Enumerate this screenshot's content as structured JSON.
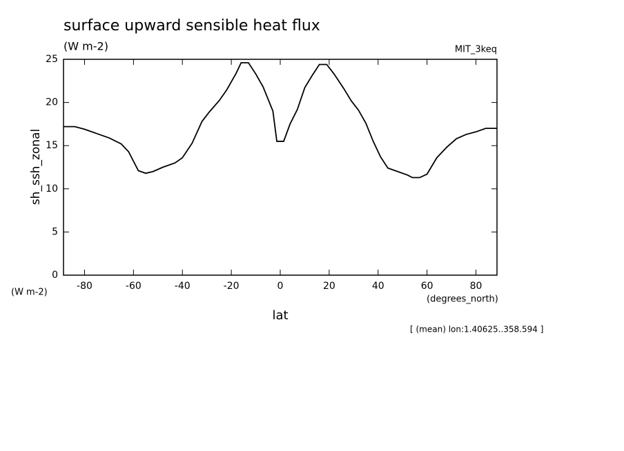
{
  "chart_data": {
    "type": "line",
    "title": "surface upward sensible heat flux",
    "subtitle": "(W m-2)",
    "dataset_label": "MIT_3keq",
    "y_label": "sh_ssh_zonal",
    "y_units": "(W m-2)",
    "x_label": "lat",
    "x_units": "(degrees_north)",
    "annotation": "[ (mean) lon:1.40625..358.594 ]",
    "x": [
      -88.6,
      -84,
      -80,
      -75,
      -70,
      -65,
      -62,
      -58,
      -55,
      -52,
      -48,
      -43,
      -40,
      -36,
      -32,
      -29,
      -25,
      -22,
      -18,
      -16,
      -13,
      -10,
      -7,
      -3,
      -1.4,
      1.4,
      4,
      7,
      10,
      13,
      16,
      19,
      22,
      26,
      29,
      32,
      35,
      38,
      41,
      44,
      48,
      52,
      54,
      57,
      60,
      64,
      68,
      72,
      76,
      80,
      84,
      88.6
    ],
    "series": [
      {
        "name": "sh_ssh_zonal",
        "color": "#000000",
        "values": [
          17.2,
          17.2,
          16.9,
          16.4,
          15.9,
          15.2,
          14.3,
          12.1,
          11.8,
          12.0,
          12.5,
          13.0,
          13.6,
          15.3,
          17.8,
          18.9,
          20.2,
          21.4,
          23.4,
          24.6,
          24.6,
          23.3,
          21.8,
          19.0,
          15.5,
          15.5,
          17.5,
          19.2,
          21.7,
          23.1,
          24.4,
          24.4,
          23.3,
          21.6,
          20.2,
          19.1,
          17.6,
          15.5,
          13.7,
          12.4,
          12.0,
          11.6,
          11.3,
          11.3,
          11.7,
          13.6,
          14.8,
          15.8,
          16.3,
          16.6,
          17.0,
          17.0
        ]
      }
    ],
    "xlim": [
      -88.6,
      88.6
    ],
    "ylim": [
      0,
      25
    ],
    "xticks": [
      -80,
      -60,
      -40,
      -20,
      0,
      20,
      40,
      60,
      80
    ],
    "yticks": [
      0,
      5,
      10,
      15,
      20,
      25
    ]
  }
}
